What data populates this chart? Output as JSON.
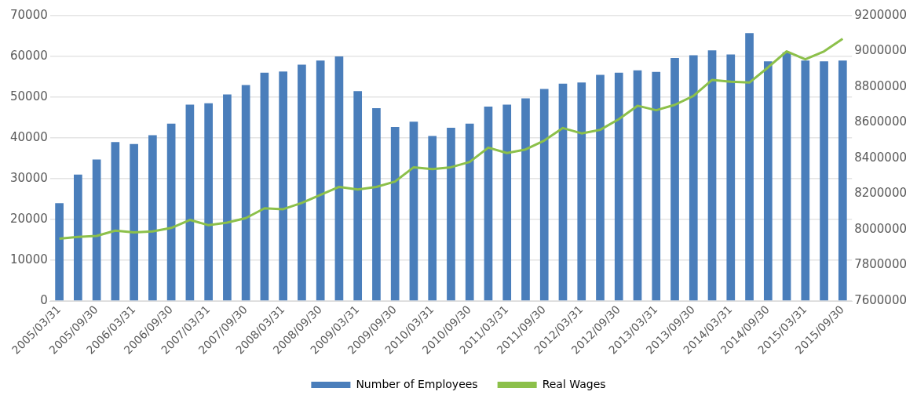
{
  "chart_data": {
    "type": "bar",
    "categories": [
      "2005/03/31",
      null,
      "2005/09/30",
      null,
      "2006/03/31",
      null,
      "2006/09/30",
      null,
      "2007/03/31",
      null,
      "2007/09/30",
      null,
      "2008/03/31",
      null,
      "2008/09/30",
      null,
      "2009/03/31",
      null,
      "2009/09/30",
      null,
      "2010/03/31",
      null,
      "2010/09/30",
      null,
      "2011/03/31",
      null,
      "2011/09/30",
      null,
      "2012/03/31",
      null,
      "2012/09/30",
      null,
      "2013/03/31",
      null,
      "2013/09/30",
      null,
      "2014/03/31",
      null,
      "2014/09/30",
      null,
      "2015/03/31",
      null,
      "2015/09/30"
    ],
    "series": [
      {
        "name": "Number of Employees",
        "color": "#4a7ebb",
        "values": [
          24000,
          31000,
          34700,
          39000,
          38500,
          40700,
          43500,
          48200,
          48500,
          50700,
          53000,
          56000,
          56300,
          58000,
          59000,
          60000,
          51500,
          47300,
          42700,
          44000,
          40500,
          42500,
          43500,
          47700,
          48200,
          49700,
          52000,
          53300,
          53600,
          55500,
          56000,
          56600,
          56200,
          59600,
          60300,
          61500,
          60500,
          65700,
          58800,
          61000,
          59000,
          58800,
          59000
        ]
      },
      {
        "name": "Real Wages",
        "type": "line",
        "axis": "y2",
        "color": "#8cc04a",
        "values": [
          7950000,
          7960000,
          7965000,
          7995000,
          7985000,
          7990000,
          8010000,
          8055000,
          8025000,
          8040000,
          8065000,
          8120000,
          8115000,
          8150000,
          8195000,
          8240000,
          8225000,
          8240000,
          8270000,
          8350000,
          8340000,
          8350000,
          8380000,
          8460000,
          8430000,
          8450000,
          8500000,
          8570000,
          8540000,
          8560000,
          8620000,
          8695000,
          8670000,
          8700000,
          8750000,
          8840000,
          8830000,
          8825000,
          8910000,
          9000000,
          8955000,
          9000000,
          9070000
        ]
      }
    ],
    "ylim": [
      0,
      70000
    ],
    "yticks": [
      0,
      10000,
      20000,
      30000,
      40000,
      50000,
      60000,
      70000
    ],
    "y2lim": [
      7600000,
      9200000
    ],
    "y2ticks": [
      7600000,
      7800000,
      8000000,
      8200000,
      8400000,
      8600000,
      8800000,
      9000000,
      9200000
    ],
    "grid": "y",
    "legend": "bottom",
    "marker": "none"
  }
}
